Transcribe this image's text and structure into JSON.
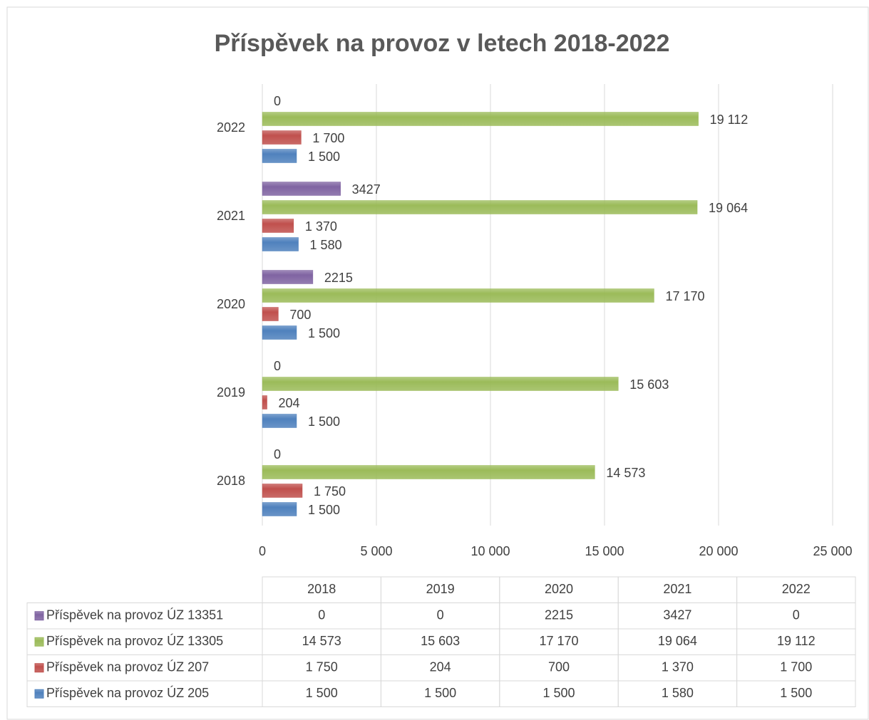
{
  "chart_data": {
    "type": "barh",
    "title": "Příspěvek na provoz v letech 2018-2022",
    "categories": [
      "2018",
      "2019",
      "2020",
      "2021",
      "2022"
    ],
    "series": [
      {
        "name": "Příspěvek na provoz ÚZ 205",
        "color": "#4f81bd",
        "values": [
          1500,
          1500,
          1500,
          1580,
          1500
        ],
        "value_labels": [
          "1 500",
          "1 500",
          "1 500",
          "1 580",
          "1 500"
        ]
      },
      {
        "name": "Příspěvek na provoz ÚZ 207",
        "color": "#c0504d",
        "values": [
          1750,
          204,
          700,
          1370,
          1700
        ],
        "value_labels": [
          "1 750",
          "204",
          "700",
          "1 370",
          "1 700"
        ]
      },
      {
        "name": "Příspěvek na provoz ÚZ 13305",
        "color": "#9bbb59",
        "values": [
          14573,
          15603,
          17170,
          19064,
          19112
        ],
        "value_labels": [
          "14 573",
          "15 603",
          "17 170",
          "19 064",
          "19 112"
        ]
      },
      {
        "name": "Příspěvek na provoz ÚZ 13351",
        "color": "#8064a2",
        "values": [
          0,
          0,
          2215,
          3427,
          0
        ]
      }
    ],
    "xlim": [
      0,
      25000
    ],
    "xticks": [
      0,
      {
        "value": 5000,
        "label": "5 000"
      },
      {
        "value": 10000,
        "label": "10 000"
      },
      {
        "value": 15000,
        "label": "15 000"
      },
      {
        "value": 20000,
        "label": "20 000"
      },
      {
        "value": 25000,
        "label": "25 000"
      }
    ],
    "grid": true
  }
}
